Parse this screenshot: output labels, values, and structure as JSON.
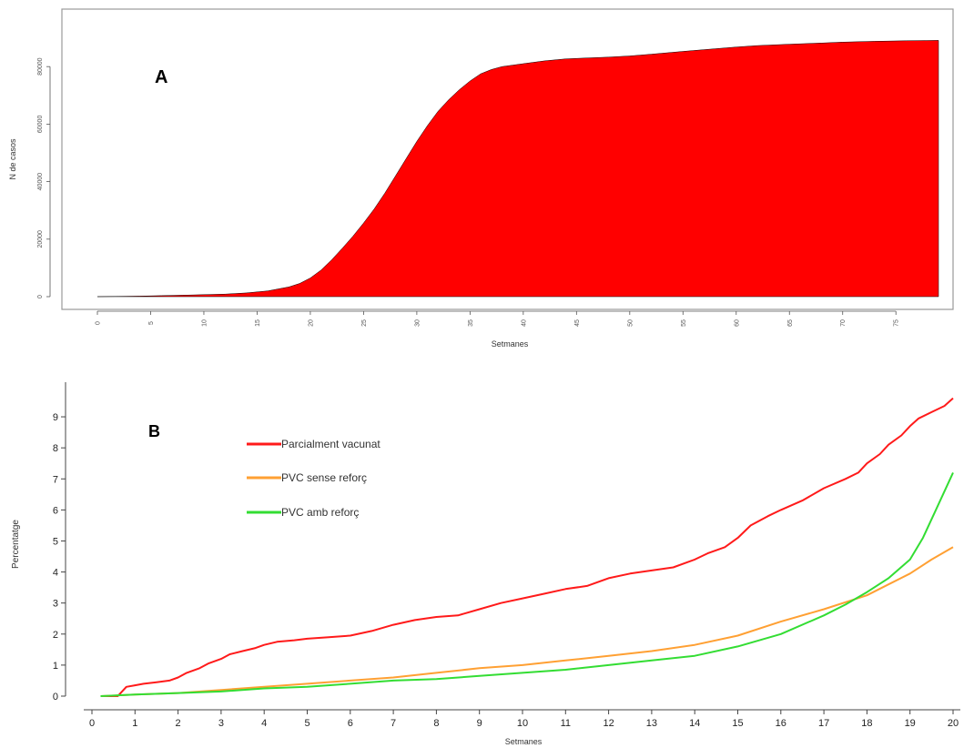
{
  "chart_data": [
    {
      "panel": "A",
      "type": "area",
      "xlabel": "Setmanes",
      "ylabel": "N de casos",
      "xlim": [
        0,
        79
      ],
      "ylim": [
        0,
        100000
      ],
      "x_ticks": [
        0,
        5,
        10,
        15,
        20,
        25,
        30,
        35,
        40,
        45,
        50,
        55,
        60,
        65,
        70,
        75
      ],
      "x_tick_labels": [
        "0",
        "5",
        "10",
        "15",
        "20",
        "25",
        "30",
        "35",
        "40",
        "45",
        "50",
        "55",
        "60",
        "65",
        "70",
        "75"
      ],
      "y_ticks": [
        0,
        20000,
        40000,
        60000,
        80000
      ],
      "y_tick_labels": [
        "0",
        "20000",
        "40000",
        "60000",
        "80000"
      ],
      "grid": false,
      "color": "#ff0000",
      "series": [
        {
          "x": [
            0,
            2,
            4,
            6,
            8,
            10,
            12,
            14,
            16,
            18,
            19,
            20,
            21,
            22,
            23,
            24,
            25,
            26,
            27,
            28,
            29,
            30,
            31,
            32,
            33,
            34,
            35,
            36,
            37,
            38,
            40,
            42,
            44,
            46,
            48,
            50,
            52,
            55,
            58,
            60,
            62,
            65,
            68,
            70,
            73,
            76,
            79
          ],
          "values": [
            0,
            100,
            200,
            350,
            500,
            700,
            900,
            1300,
            2000,
            3400,
            4600,
            6500,
            9200,
            12800,
            16800,
            21000,
            25600,
            30500,
            36000,
            42000,
            48000,
            54000,
            59500,
            64500,
            68500,
            72000,
            75000,
            77500,
            79000,
            80000,
            81000,
            82000,
            82700,
            83000,
            83300,
            83700,
            84300,
            85300,
            86200,
            86800,
            87300,
            87800,
            88200,
            88500,
            88800,
            89000,
            89100
          ]
        }
      ]
    },
    {
      "panel": "B",
      "type": "line",
      "xlabel": "Setmanes",
      "ylabel": "Percentatge",
      "xlim": [
        0,
        20
      ],
      "ylim": [
        0,
        9.5
      ],
      "x_ticks": [
        0,
        1,
        2,
        3,
        4,
        5,
        6,
        7,
        8,
        9,
        10,
        11,
        12,
        13,
        14,
        15,
        16,
        17,
        18,
        19,
        20
      ],
      "x_tick_labels": [
        "0",
        "1",
        "2",
        "3",
        "4",
        "5",
        "6",
        "7",
        "8",
        "9",
        "10",
        "11",
        "12",
        "13",
        "14",
        "15",
        "16",
        "17",
        "18",
        "19",
        "20"
      ],
      "y_ticks": [
        0,
        1,
        2,
        3,
        4,
        5,
        6,
        7,
        8,
        9
      ],
      "y_tick_labels": [
        "0",
        "1",
        "2",
        "3",
        "4",
        "5",
        "6",
        "7",
        "8",
        "9"
      ],
      "grid": false,
      "legend_position": "top-left",
      "series": [
        {
          "name": "Parcialment vacunat",
          "color": "#ff1a1a",
          "x": [
            0.2,
            0.6,
            0.8,
            1.0,
            1.2,
            1.5,
            1.8,
            2.0,
            2.2,
            2.5,
            2.7,
            3.0,
            3.2,
            3.5,
            3.8,
            4.0,
            4.3,
            4.7,
            5.0,
            5.5,
            6.0,
            6.5,
            7.0,
            7.5,
            8.0,
            8.5,
            9.0,
            9.5,
            10.0,
            10.5,
            11.0,
            11.5,
            12.0,
            12.5,
            13.0,
            13.5,
            14.0,
            14.3,
            14.7,
            15.0,
            15.3,
            15.7,
            16.0,
            16.5,
            17.0,
            17.5,
            17.8,
            18.0,
            18.3,
            18.5,
            18.8,
            19.0,
            19.2,
            19.5,
            19.8,
            20.0
          ],
          "values": [
            0.0,
            0.0,
            0.3,
            0.35,
            0.4,
            0.45,
            0.5,
            0.6,
            0.75,
            0.9,
            1.05,
            1.2,
            1.35,
            1.45,
            1.55,
            1.65,
            1.75,
            1.8,
            1.85,
            1.9,
            1.95,
            2.1,
            2.3,
            2.45,
            2.55,
            2.6,
            2.8,
            3.0,
            3.15,
            3.3,
            3.45,
            3.55,
            3.8,
            3.95,
            4.05,
            4.15,
            4.4,
            4.6,
            4.8,
            5.1,
            5.5,
            5.8,
            6.0,
            6.3,
            6.7,
            7.0,
            7.2,
            7.5,
            7.8,
            8.1,
            8.4,
            8.7,
            8.95,
            9.15,
            9.35,
            9.6
          ]
        },
        {
          "name": "PVC sense reforç",
          "color": "#ffa033",
          "x": [
            0.2,
            1,
            2,
            3,
            4,
            5,
            6,
            7,
            8,
            9,
            10,
            11,
            12,
            13,
            14,
            15,
            16,
            17,
            18,
            18.5,
            19,
            19.5,
            20
          ],
          "values": [
            0.0,
            0.05,
            0.1,
            0.2,
            0.3,
            0.4,
            0.5,
            0.6,
            0.75,
            0.9,
            1.0,
            1.15,
            1.3,
            1.45,
            1.65,
            1.95,
            2.4,
            2.8,
            3.25,
            3.6,
            3.95,
            4.4,
            4.8
          ]
        },
        {
          "name": "PVC amb reforç",
          "color": "#33dd33",
          "x": [
            0.2,
            1,
            2,
            3,
            4,
            5,
            6,
            7,
            8,
            9,
            10,
            11,
            12,
            13,
            14,
            15,
            16,
            17,
            17.5,
            18,
            18.5,
            19,
            19.3,
            19.6,
            20
          ],
          "values": [
            0.0,
            0.05,
            0.1,
            0.15,
            0.25,
            0.3,
            0.4,
            0.5,
            0.55,
            0.65,
            0.75,
            0.85,
            1.0,
            1.15,
            1.3,
            1.6,
            2.0,
            2.6,
            2.95,
            3.35,
            3.8,
            4.4,
            5.1,
            6.0,
            7.2
          ]
        }
      ]
    }
  ],
  "labels": {
    "panel_a": "A",
    "panel_b": "B"
  }
}
